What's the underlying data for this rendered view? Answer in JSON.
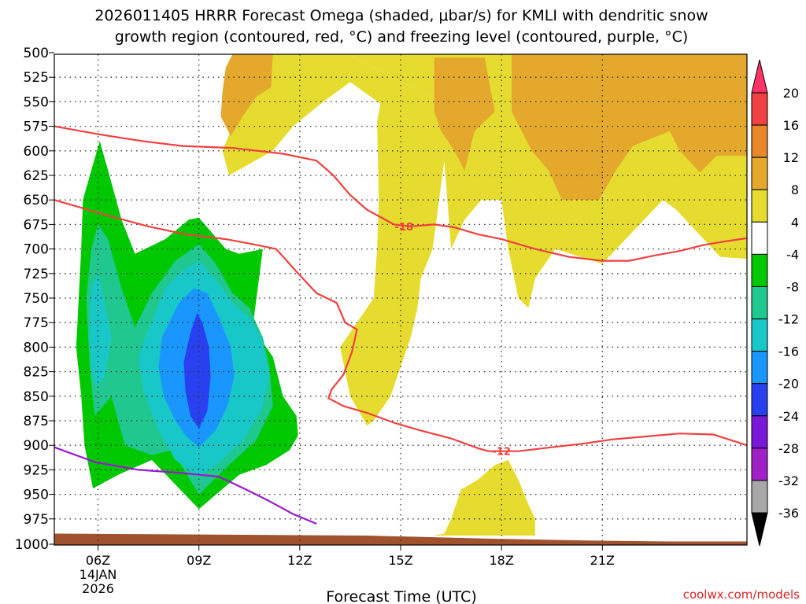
{
  "chart_data": {
    "type": "heatmap",
    "title_line1": "2026011405 HRRR Forecast Omega (shaded, μbar/s) for KMLI with dendritic snow",
    "title_line2": "growth region (contoured, red, °C) and freezing level (contoured, purple, °C)",
    "xlabel": "Forecast Time (UTC)",
    "credit": "coolwx.com/models",
    "x_range_hours": [
      4.7,
      25.3
    ],
    "y_range_hpa": [
      500,
      1000
    ],
    "y_ticks": [
      500,
      525,
      550,
      575,
      600,
      625,
      650,
      675,
      700,
      725,
      750,
      775,
      800,
      825,
      850,
      875,
      900,
      925,
      950,
      975,
      1000
    ],
    "x_ticks": [
      {
        "hour": 6,
        "label": "06Z",
        "sub1": "14JAN",
        "sub2": "2026"
      },
      {
        "hour": 9,
        "label": "09Z"
      },
      {
        "hour": 12,
        "label": "12Z"
      },
      {
        "hour": 15,
        "label": "15Z"
      },
      {
        "hour": 18,
        "label": "18Z"
      },
      {
        "hour": 21,
        "label": "21Z"
      }
    ],
    "colorbar": {
      "levels": [
        20,
        16,
        12,
        8,
        4,
        -4,
        -8,
        -12,
        -16,
        -20,
        -24,
        -28,
        -32,
        -36
      ],
      "colors": [
        "#ff3366",
        "#f04040",
        "#e8862a",
        "#e3a82c",
        "#e6dc30",
        "#ffffff",
        "#00c800",
        "#20c890",
        "#18c8c8",
        "#1a96ff",
        "#2840f0",
        "#7a18d8",
        "#a020c8",
        "#a8a8a8",
        "#000000"
      ]
    },
    "shading": [
      {
        "name": "pos-4-west",
        "color": "#e6dc30",
        "pts": [
          [
            6.8,
            500
          ],
          [
            10.1,
            500
          ],
          [
            10.3,
            550
          ],
          [
            9.7,
            600
          ],
          [
            9.9,
            625
          ],
          [
            11.2,
            600
          ],
          [
            11.8,
            575
          ],
          [
            12.7,
            550
          ],
          [
            13.5,
            530
          ],
          [
            14.4,
            552
          ],
          [
            14.3,
            570
          ],
          [
            14.35,
            650
          ],
          [
            14.3,
            700
          ],
          [
            14.2,
            750
          ],
          [
            13.2,
            800
          ],
          [
            13.5,
            850
          ],
          [
            14.0,
            880
          ],
          [
            14.2,
            875
          ],
          [
            14.7,
            850
          ],
          [
            15.0,
            820
          ],
          [
            15.3,
            790
          ],
          [
            15.5,
            760
          ],
          [
            15.6,
            730
          ],
          [
            15.95,
            700
          ],
          [
            16.3,
            610
          ],
          [
            16.5,
            560
          ],
          [
            15.9,
            545
          ],
          [
            13.4,
            500
          ]
        ]
      },
      {
        "name": "pos-4-east",
        "color": "#e6dc30",
        "pts": [
          [
            13.4,
            500
          ],
          [
            25.3,
            500
          ],
          [
            25.3,
            710
          ],
          [
            24.5,
            708
          ],
          [
            23.2,
            660
          ],
          [
            22.8,
            650
          ],
          [
            21.0,
            715
          ],
          [
            19.6,
            700
          ],
          [
            19.0,
            730
          ],
          [
            18.8,
            760
          ],
          [
            18.5,
            750
          ],
          [
            18.2,
            700
          ],
          [
            18.0,
            650
          ],
          [
            17.4,
            650
          ],
          [
            16.9,
            670
          ],
          [
            16.5,
            700
          ],
          [
            16.3,
            610
          ],
          [
            16.5,
            560
          ],
          [
            15.9,
            545
          ]
        ]
      },
      {
        "name": "pos-8-west",
        "color": "#e3a82c",
        "pts": [
          [
            10.0,
            500
          ],
          [
            10.7,
            500
          ],
          [
            11.2,
            500
          ],
          [
            11.15,
            535
          ],
          [
            10.7,
            545
          ],
          [
            10.3,
            565
          ],
          [
            9.95,
            585
          ],
          [
            9.65,
            565
          ],
          [
            9.7,
            540
          ],
          [
            9.8,
            515
          ]
        ]
      },
      {
        "name": "pos-8-a",
        "color": "#e3a82c",
        "pts": [
          [
            16.0,
            505
          ],
          [
            17.5,
            505
          ],
          [
            17.8,
            560
          ],
          [
            17.2,
            580
          ],
          [
            16.9,
            620
          ],
          [
            16.6,
            600
          ],
          [
            16.2,
            580
          ],
          [
            16.0,
            560
          ]
        ]
      },
      {
        "name": "pos-8-b",
        "color": "#e3a82c",
        "pts": [
          [
            18.3,
            500
          ],
          [
            25.3,
            500
          ],
          [
            25.3,
            605
          ],
          [
            24.4,
            605
          ],
          [
            23.9,
            622
          ],
          [
            23.3,
            600
          ],
          [
            23.0,
            580
          ],
          [
            21.9,
            595
          ],
          [
            21.4,
            620
          ],
          [
            20.9,
            650
          ],
          [
            19.8,
            650
          ],
          [
            19.4,
            620
          ],
          [
            18.9,
            600
          ],
          [
            18.3,
            560
          ]
        ]
      },
      {
        "name": "pos-4-low",
        "color": "#e6dc30",
        "pts": [
          [
            15.95,
            992
          ],
          [
            19.0,
            992
          ],
          [
            19.0,
            975
          ],
          [
            18.8,
            960
          ],
          [
            18.5,
            935
          ],
          [
            18.2,
            915
          ],
          [
            17.8,
            920
          ],
          [
            17.3,
            935
          ],
          [
            16.8,
            945
          ],
          [
            16.5,
            975
          ],
          [
            16.3,
            990
          ]
        ]
      },
      {
        "name": "neg-4",
        "color": "#00c800",
        "pts": [
          [
            5.85,
            944
          ],
          [
            6.6,
            930
          ],
          [
            7.6,
            915
          ],
          [
            9.0,
            965
          ],
          [
            10.2,
            930
          ],
          [
            11.0,
            920
          ],
          [
            11.7,
            905
          ],
          [
            11.95,
            890
          ],
          [
            11.9,
            870
          ],
          [
            11.5,
            850
          ],
          [
            11.2,
            810
          ],
          [
            10.6,
            780
          ],
          [
            10.9,
            700
          ],
          [
            10.2,
            705
          ],
          [
            9.8,
            700
          ],
          [
            9.0,
            668
          ],
          [
            8.7,
            670
          ],
          [
            8.0,
            690
          ],
          [
            7.1,
            705
          ],
          [
            6.7,
            670
          ],
          [
            6.3,
            620
          ],
          [
            6.05,
            590
          ],
          [
            5.8,
            620
          ],
          [
            5.55,
            650
          ],
          [
            5.5,
            700
          ],
          [
            5.35,
            800
          ],
          [
            5.5,
            850
          ],
          [
            5.6,
            900
          ]
        ]
      },
      {
        "name": "neg-8",
        "color": "#20c890",
        "pts": [
          [
            5.9,
            870
          ],
          [
            6.4,
            850
          ],
          [
            6.8,
            900
          ],
          [
            7.6,
            910
          ],
          [
            8.2,
            905
          ],
          [
            9.0,
            950
          ],
          [
            9.9,
            920
          ],
          [
            10.7,
            895
          ],
          [
            11.2,
            860
          ],
          [
            11.1,
            820
          ],
          [
            10.9,
            790
          ],
          [
            10.5,
            760
          ],
          [
            10.0,
            745
          ],
          [
            9.5,
            715
          ],
          [
            9.0,
            695
          ],
          [
            8.3,
            712
          ],
          [
            7.6,
            745
          ],
          [
            7.1,
            780
          ],
          [
            6.7,
            740
          ],
          [
            6.3,
            690
          ],
          [
            6.0,
            675
          ],
          [
            5.8,
            700
          ],
          [
            5.65,
            750
          ],
          [
            5.75,
            820
          ]
        ]
      },
      {
        "name": "neg-12",
        "color": "#18c8c8",
        "pts": [
          [
            5.95,
            840
          ],
          [
            6.2,
            830
          ],
          [
            6.4,
            790
          ],
          [
            6.2,
            755
          ],
          [
            6.0,
            725
          ],
          [
            5.8,
            740
          ],
          [
            5.75,
            790
          ],
          [
            5.85,
            830
          ]
        ]
      },
      {
        "name": "neg-12b",
        "color": "#18c8c8",
        "pts": [
          [
            9.0,
            932
          ],
          [
            9.6,
            918
          ],
          [
            10.3,
            895
          ],
          [
            10.85,
            865
          ],
          [
            11.1,
            830
          ],
          [
            10.85,
            790
          ],
          [
            10.5,
            770
          ],
          [
            10.0,
            755
          ],
          [
            9.6,
            735
          ],
          [
            9.0,
            712
          ],
          [
            8.5,
            722
          ],
          [
            8.0,
            740
          ],
          [
            7.4,
            790
          ],
          [
            7.2,
            810
          ],
          [
            7.35,
            845
          ],
          [
            7.8,
            885
          ],
          [
            8.3,
            915
          ]
        ]
      },
      {
        "name": "neg-16",
        "color": "#1a96ff",
        "pts": [
          [
            9.0,
            902
          ],
          [
            9.5,
            885
          ],
          [
            9.85,
            860
          ],
          [
            10.05,
            830
          ],
          [
            9.95,
            800
          ],
          [
            9.6,
            770
          ],
          [
            9.25,
            745
          ],
          [
            8.85,
            740
          ],
          [
            8.4,
            755
          ],
          [
            7.9,
            790
          ],
          [
            7.8,
            820
          ],
          [
            7.95,
            850
          ],
          [
            8.3,
            875
          ],
          [
            8.6,
            890
          ]
        ]
      },
      {
        "name": "neg-20",
        "color": "#2840f0",
        "pts": [
          [
            9.0,
            883
          ],
          [
            9.25,
            865
          ],
          [
            9.35,
            830
          ],
          [
            9.3,
            800
          ],
          [
            9.1,
            775
          ],
          [
            8.95,
            765
          ],
          [
            8.75,
            785
          ],
          [
            8.55,
            815
          ],
          [
            8.6,
            845
          ],
          [
            8.75,
            870
          ]
        ]
      }
    ],
    "ground_poly": [
      [
        4.7,
        990
      ],
      [
        14.0,
        992
      ],
      [
        17.5,
        995
      ],
      [
        20.5,
        997
      ],
      [
        23.0,
        998
      ],
      [
        25.3,
        998
      ],
      [
        25.3,
        1003
      ],
      [
        4.7,
        1003
      ]
    ],
    "red_contours": [
      {
        "label": "-18",
        "label_at": [
          15.1,
          677
        ],
        "pts": [
          [
            4.7,
            575
          ],
          [
            6.0,
            583
          ],
          [
            7.3,
            590
          ],
          [
            8.5,
            595
          ],
          [
            10.0,
            597
          ],
          [
            11.5,
            603
          ],
          [
            12.5,
            610
          ],
          [
            13.0,
            625
          ],
          [
            13.5,
            645
          ],
          [
            14.0,
            660
          ],
          [
            14.8,
            675
          ],
          [
            15.3,
            677
          ],
          [
            16.0,
            675
          ],
          [
            16.6,
            678
          ],
          [
            17.3,
            685
          ],
          [
            18.0,
            690
          ],
          [
            19.0,
            700
          ],
          [
            20.0,
            708
          ],
          [
            21.0,
            712
          ],
          [
            21.8,
            712
          ],
          [
            22.5,
            707
          ],
          [
            23.3,
            702
          ],
          [
            24.0,
            696
          ],
          [
            24.7,
            692
          ],
          [
            25.3,
            689
          ]
        ]
      },
      {
        "label": "-12",
        "label_at": [
          18.0,
          906
        ],
        "pts": [
          [
            4.7,
            650
          ],
          [
            6.2,
            665
          ],
          [
            7.5,
            677
          ],
          [
            8.6,
            685
          ],
          [
            9.8,
            690
          ],
          [
            10.6,
            695
          ],
          [
            11.3,
            700
          ],
          [
            11.9,
            723
          ],
          [
            12.5,
            745
          ],
          [
            13.1,
            755
          ],
          [
            13.35,
            775
          ],
          [
            13.7,
            782
          ],
          [
            13.55,
            805
          ],
          [
            13.3,
            828
          ],
          [
            12.95,
            843
          ],
          [
            12.85,
            852
          ],
          [
            13.3,
            860
          ],
          [
            14.0,
            867
          ],
          [
            14.8,
            877
          ],
          [
            15.6,
            885
          ],
          [
            16.5,
            893
          ],
          [
            17.3,
            903
          ],
          [
            17.6,
            906
          ],
          [
            18.5,
            906
          ],
          [
            19.5,
            902
          ],
          [
            20.5,
            898
          ],
          [
            21.3,
            894
          ],
          [
            22.3,
            891
          ],
          [
            23.3,
            888
          ],
          [
            24.3,
            889
          ],
          [
            25.3,
            900
          ]
        ]
      }
    ],
    "purple_contour": {
      "pts": [
        [
          4.7,
          902
        ],
        [
          5.9,
          917
        ],
        [
          7.2,
          925
        ],
        [
          8.4,
          928
        ],
        [
          9.6,
          932
        ],
        [
          10.4,
          945
        ],
        [
          11.1,
          957
        ],
        [
          11.8,
          970
        ],
        [
          12.5,
          980
        ]
      ]
    }
  }
}
